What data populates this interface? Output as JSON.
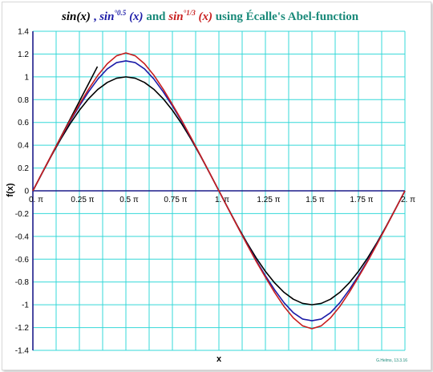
{
  "chart_data": {
    "type": "line",
    "title_parts": {
      "sin": "sin(x)",
      "sep": " , ",
      "sin_half_base": "sin",
      "sin_half_sup": "°0.5",
      "sin_half_arg": " (x)",
      "and": " and ",
      "sin_third_base": "sin",
      "sin_third_sup": "°1/3",
      "sin_third_arg": " (x)",
      "tail": "  using Écalle's Abel-function"
    },
    "xlabel": "x",
    "ylabel": "f(x)",
    "credit": "G.Helms, 13.3.16",
    "xlim": [
      0,
      2
    ],
    "ylim": [
      -1.4,
      1.4
    ],
    "x_unit": "π",
    "x_ticks": [
      {
        "value": 0,
        "label": "0."
      },
      {
        "value": 0.25,
        "label": "0.25"
      },
      {
        "value": 0.5,
        "label": "0.5"
      },
      {
        "value": 0.75,
        "label": "0.75"
      },
      {
        "value": 1,
        "label": "1."
      },
      {
        "value": 1.25,
        "label": "1.25"
      },
      {
        "value": 1.5,
        "label": "1.5"
      },
      {
        "value": 1.75,
        "label": "1.75"
      },
      {
        "value": 2,
        "label": "2."
      }
    ],
    "y_ticks": [
      {
        "value": 1.4,
        "label": "1.4"
      },
      {
        "value": 1.2,
        "label": "1.2"
      },
      {
        "value": 1,
        "label": "1"
      },
      {
        "value": 0.8,
        "label": "0.8"
      },
      {
        "value": 0.6,
        "label": "0.6"
      },
      {
        "value": 0.4,
        "label": "0.4"
      },
      {
        "value": 0.2,
        "label": "0.2"
      },
      {
        "value": 0,
        "label": "0"
      },
      {
        "value": -0.2,
        "label": "-0.2"
      },
      {
        "value": -0.4,
        "label": "-0.4"
      },
      {
        "value": -0.6,
        "label": "-0.6"
      },
      {
        "value": -0.8,
        "label": "-0.8"
      },
      {
        "value": -1,
        "label": "-1"
      },
      {
        "value": -1.2,
        "label": "-1.2"
      },
      {
        "value": -1.4,
        "label": "-1.4"
      }
    ],
    "grid": true,
    "colors": {
      "grid": "#34d8d8",
      "axes": "#1c1c8a",
      "sin": "#000000",
      "sin_half": "#1c1ca8",
      "sin_third": "#c81e1e",
      "title_teal": "#1a8a7a"
    },
    "series": [
      {
        "key": "identity",
        "color": "#000000",
        "x": [
          0,
          0.1,
          0.2,
          0.3,
          0.347
        ],
        "y": [
          0,
          0.314,
          0.628,
          0.942,
          1.09
        ]
      },
      {
        "key": "sin",
        "color": "#000000",
        "x": [
          0,
          0.05,
          0.1,
          0.15,
          0.2,
          0.25,
          0.3,
          0.35,
          0.4,
          0.45,
          0.5,
          0.55,
          0.6,
          0.65,
          0.7,
          0.75,
          0.8,
          0.85,
          0.9,
          0.95,
          1,
          1.05,
          1.1,
          1.15,
          1.2,
          1.25,
          1.3,
          1.35,
          1.4,
          1.45,
          1.5,
          1.55,
          1.6,
          1.65,
          1.7,
          1.75,
          1.8,
          1.85,
          1.9,
          1.95,
          2
        ],
        "y": [
          0,
          0.156,
          0.309,
          0.454,
          0.588,
          0.707,
          0.809,
          0.891,
          0.951,
          0.988,
          1,
          0.988,
          0.951,
          0.891,
          0.809,
          0.707,
          0.588,
          0.454,
          0.309,
          0.156,
          0,
          -0.156,
          -0.309,
          -0.454,
          -0.588,
          -0.707,
          -0.809,
          -0.891,
          -0.951,
          -0.988,
          -1,
          -0.988,
          -0.951,
          -0.891,
          -0.809,
          -0.707,
          -0.588,
          -0.454,
          -0.309,
          -0.156,
          0
        ]
      },
      {
        "key": "sin_half",
        "color": "#1c1ca8",
        "x": [
          0,
          0.05,
          0.1,
          0.15,
          0.2,
          0.25,
          0.3,
          0.35,
          0.4,
          0.45,
          0.5,
          0.55,
          0.6,
          0.65,
          0.7,
          0.75,
          0.8,
          0.85,
          0.9,
          0.95,
          1,
          1.05,
          1.1,
          1.15,
          1.2,
          1.25,
          1.3,
          1.35,
          1.4,
          1.45,
          1.5,
          1.55,
          1.6,
          1.65,
          1.7,
          1.75,
          1.8,
          1.85,
          1.9,
          1.95,
          2
        ],
        "y": [
          0,
          0.157,
          0.312,
          0.464,
          0.61,
          0.745,
          0.87,
          0.982,
          1.07,
          1.125,
          1.14,
          1.125,
          1.07,
          0.982,
          0.87,
          0.745,
          0.61,
          0.464,
          0.312,
          0.157,
          0,
          -0.157,
          -0.312,
          -0.464,
          -0.61,
          -0.745,
          -0.87,
          -0.982,
          -1.07,
          -1.125,
          -1.14,
          -1.125,
          -1.07,
          -0.982,
          -0.87,
          -0.745,
          -0.61,
          -0.464,
          -0.312,
          -0.157,
          0
        ]
      },
      {
        "key": "sin_third",
        "color": "#c81e1e",
        "x": [
          0,
          0.05,
          0.1,
          0.15,
          0.2,
          0.25,
          0.3,
          0.35,
          0.4,
          0.45,
          0.5,
          0.55,
          0.6,
          0.65,
          0.7,
          0.75,
          0.8,
          0.85,
          0.9,
          0.95,
          1,
          1.05,
          1.1,
          1.15,
          1.2,
          1.25,
          1.3,
          1.35,
          1.4,
          1.45,
          1.5,
          1.55,
          1.6,
          1.65,
          1.7,
          1.75,
          1.8,
          1.85,
          1.9,
          1.95,
          2
        ],
        "y": [
          0,
          0.157,
          0.313,
          0.468,
          0.618,
          0.758,
          0.893,
          1.015,
          1.115,
          1.185,
          1.21,
          1.185,
          1.115,
          1.015,
          0.893,
          0.758,
          0.618,
          0.468,
          0.313,
          0.157,
          0,
          -0.157,
          -0.313,
          -0.468,
          -0.618,
          -0.758,
          -0.893,
          -1.015,
          -1.115,
          -1.185,
          -1.21,
          -1.185,
          -1.115,
          -1.015,
          -0.893,
          -0.758,
          -0.618,
          -0.468,
          -0.313,
          -0.157,
          0
        ]
      }
    ]
  }
}
